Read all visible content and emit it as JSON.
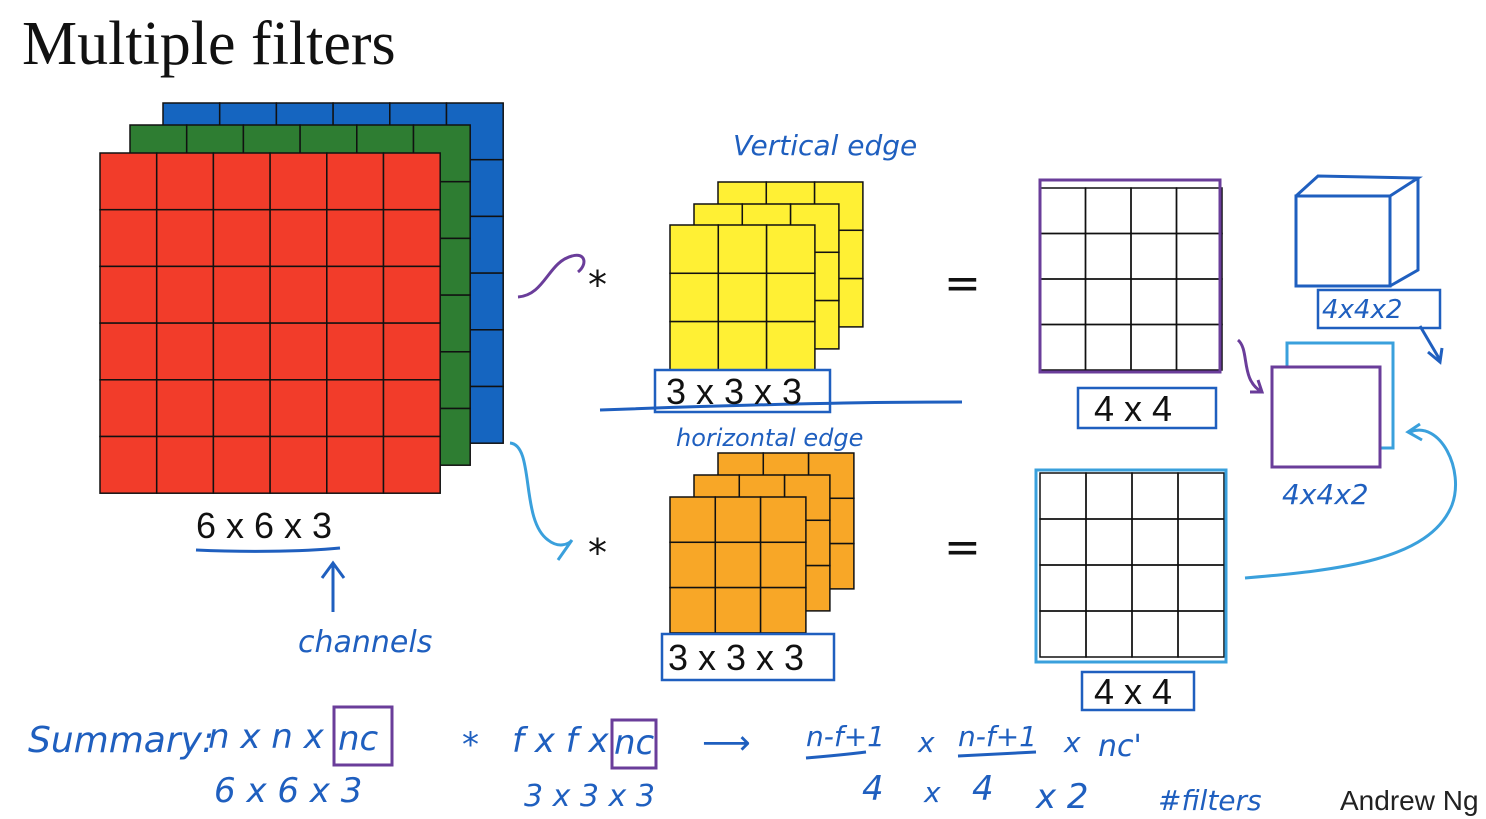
{
  "title": "Multiple filters",
  "input": {
    "label": "6 x 6 x 3",
    "note": "channels"
  },
  "filters": [
    {
      "note": "Vertical edge",
      "operator": "*",
      "label": "3 x 3 x 3",
      "equals": "=",
      "output_label": "4 x 4"
    },
    {
      "note": "horizontal edge",
      "operator": "*",
      "label": "3 x 3 x 3",
      "equals": "=",
      "output_label": "4 x 4"
    }
  ],
  "stacked_output": {
    "top_label": "4x4x2",
    "bottom_label": "4x4x2"
  },
  "summary": {
    "label": "Summary:",
    "row1": [
      "n x n x",
      "nc",
      "*",
      "f x f x",
      "nc",
      "⟶",
      "n-f+1",
      "x",
      "n-f+1",
      "x",
      "nc'"
    ],
    "row2": [
      "6 x 6 x 3",
      "3 x 3 x 3",
      "4",
      "x",
      "4",
      "x 2",
      "#filters"
    ]
  },
  "footer": "Andrew Ng"
}
